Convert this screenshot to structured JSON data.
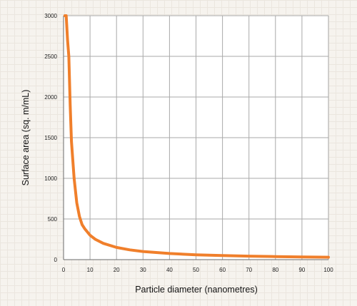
{
  "chart_data": {
    "type": "line",
    "title": "",
    "xlabel": "Particle diameter (nanometres)",
    "ylabel": "Surface area (sq. m/mL)",
    "xlim": [
      0,
      100
    ],
    "ylim": [
      0,
      3000
    ],
    "x_ticks": [
      0,
      10,
      20,
      30,
      40,
      50,
      60,
      70,
      80,
      90,
      100
    ],
    "y_ticks": [
      0,
      500,
      1000,
      1500,
      2000,
      2500,
      3000
    ],
    "grid": true,
    "legend": "none",
    "colors": {
      "line": "#f07f2b",
      "grid": "#a9a9a9",
      "background": "#f6f3ee",
      "plot_background": "#ffffff"
    },
    "series": [
      {
        "x": [
          0.5,
          1,
          1.5,
          2,
          2.5,
          3,
          4,
          5,
          6,
          7,
          8,
          10,
          12,
          15,
          20,
          25,
          30,
          40,
          50,
          60,
          70,
          80,
          90,
          100
        ],
        "y": [
          3000,
          3000,
          2700,
          2500,
          1900,
          1450,
          1000,
          700,
          530,
          430,
          380,
          300,
          250,
          200,
          150,
          120,
          100,
          75,
          60,
          50,
          43,
          38,
          33,
          30
        ]
      }
    ]
  }
}
